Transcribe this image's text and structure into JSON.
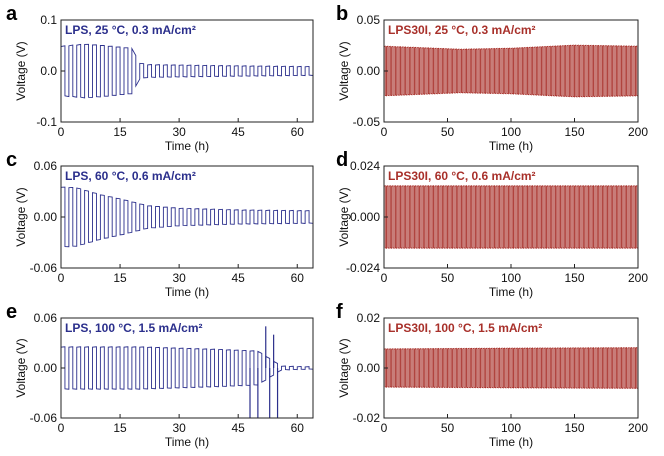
{
  "chart_data": [
    {
      "panel": "a",
      "type": "line",
      "title": "LPS, 25 °C, 0.3 mA/cm²",
      "xlabel": "Time (h)",
      "ylabel": "Voltage (V)",
      "xlim": [
        0,
        64
      ],
      "ylim": [
        -0.1,
        0.1
      ],
      "xticks": [
        0,
        15,
        30,
        45,
        60
      ],
      "yticks": [
        -0.1,
        0.0,
        0.1
      ],
      "yticklabels": [
        "-0.1",
        "0.0",
        "0.1"
      ],
      "color": "#2b2f8c",
      "series": [
        {
          "name": "LPS",
          "cycle_period_h": 2,
          "amplitude_envelope": [
            [
              0,
              0.048
            ],
            [
              6,
              0.052
            ],
            [
              10,
              0.05
            ],
            [
              18,
              0.044
            ],
            [
              20,
              0.015
            ],
            [
              22,
              0.012
            ],
            [
              40,
              0.01
            ],
            [
              64,
              0.008
            ]
          ]
        }
      ]
    },
    {
      "panel": "b",
      "type": "line",
      "title": "LPS30I, 25 °C, 0.3 mA/cm²",
      "xlabel": "Time (h)",
      "ylabel": "Voltage (V)",
      "xlim": [
        0,
        200
      ],
      "ylim": [
        -0.05,
        0.05
      ],
      "xticks": [
        0,
        50,
        100,
        150,
        200
      ],
      "yticks": [
        -0.05,
        0.0,
        0.05
      ],
      "yticklabels": [
        "-0.05",
        "0.00",
        "0.05"
      ],
      "color": "#a8302a",
      "series": [
        {
          "name": "LPS30I",
          "cycle_period_h": 2,
          "amplitude_envelope": [
            [
              0,
              0.024
            ],
            [
              60,
              0.021
            ],
            [
              100,
              0.022
            ],
            [
              150,
              0.025
            ],
            [
              200,
              0.024
            ]
          ]
        }
      ]
    },
    {
      "panel": "c",
      "type": "line",
      "title": "LPS, 60 °C, 0.6 mA/cm²",
      "xlabel": "Time (h)",
      "ylabel": "Voltage (V)",
      "xlim": [
        0,
        64
      ],
      "ylim": [
        -0.06,
        0.06
      ],
      "xticks": [
        0,
        15,
        30,
        45,
        60
      ],
      "yticks": [
        -0.06,
        0.0,
        0.06
      ],
      "yticklabels": [
        "-0.06",
        "0.00",
        "0.06"
      ],
      "color": "#2b2f8c",
      "series": [
        {
          "name": "LPS",
          "cycle_period_h": 2,
          "amplitude_envelope": [
            [
              0,
              0.035
            ],
            [
              4,
              0.034
            ],
            [
              10,
              0.026
            ],
            [
              16,
              0.02
            ],
            [
              22,
              0.013
            ],
            [
              30,
              0.01
            ],
            [
              45,
              0.008
            ],
            [
              64,
              0.007
            ]
          ]
        }
      ]
    },
    {
      "panel": "d",
      "type": "line",
      "title": "LPS30I, 60 °C, 0.6 mA/cm²",
      "xlabel": "Time (h)",
      "ylabel": "Voltage (V)",
      "xlim": [
        0,
        200
      ],
      "ylim": [
        -0.024,
        0.024
      ],
      "xticks": [
        0,
        50,
        100,
        150,
        200
      ],
      "yticks": [
        -0.024,
        0.0,
        0.024
      ],
      "yticklabels": [
        "-0.024",
        "0.000",
        "0.024"
      ],
      "color": "#a8302a",
      "series": [
        {
          "name": "LPS30I",
          "cycle_period_h": 2,
          "amplitude_envelope": [
            [
              0,
              0.0145
            ],
            [
              100,
              0.0145
            ],
            [
              200,
              0.0145
            ]
          ]
        }
      ]
    },
    {
      "panel": "e",
      "type": "line",
      "title": "LPS, 100 °C, 1.5 mA/cm²",
      "xlabel": "Time (h)",
      "ylabel": "Voltage (V)",
      "xlim": [
        0,
        64
      ],
      "ylim": [
        -0.06,
        0.06
      ],
      "xticks": [
        0,
        15,
        30,
        45,
        60
      ],
      "yticks": [
        -0.06,
        0.0,
        0.06
      ],
      "yticklabels": [
        "-0.06",
        "0.00",
        "0.06"
      ],
      "color": "#2b2f8c",
      "series": [
        {
          "name": "LPS",
          "cycle_period_h": 2,
          "amplitude_envelope": [
            [
              0,
              0.025
            ],
            [
              20,
              0.025
            ],
            [
              40,
              0.022
            ],
            [
              50,
              0.02
            ],
            [
              56,
              0.002
            ],
            [
              64,
              0.001
            ]
          ],
          "failure_spikes": [
            [
              48,
              -0.06
            ],
            [
              50,
              -0.06
            ],
            [
              52,
              0.05
            ],
            [
              53,
              -0.06
            ],
            [
              54,
              0.04
            ],
            [
              55,
              -0.06
            ]
          ]
        }
      ]
    },
    {
      "panel": "f",
      "type": "line",
      "title": "LPS30I, 100 °C, 1.5 mA/cm²",
      "xlabel": "Time (h)",
      "ylabel": "Voltage (V)",
      "xlim": [
        0,
        200
      ],
      "ylim": [
        -0.02,
        0.02
      ],
      "xticks": [
        0,
        50,
        100,
        150,
        200
      ],
      "yticks": [
        -0.02,
        0.0,
        0.02
      ],
      "yticklabels": [
        "-0.02",
        "0.00",
        "0.02"
      ],
      "color": "#a8302a",
      "series": [
        {
          "name": "LPS30I",
          "cycle_period_h": 2,
          "amplitude_envelope": [
            [
              0,
              0.0075
            ],
            [
              100,
              0.0078
            ],
            [
              200,
              0.008
            ]
          ]
        }
      ]
    }
  ]
}
